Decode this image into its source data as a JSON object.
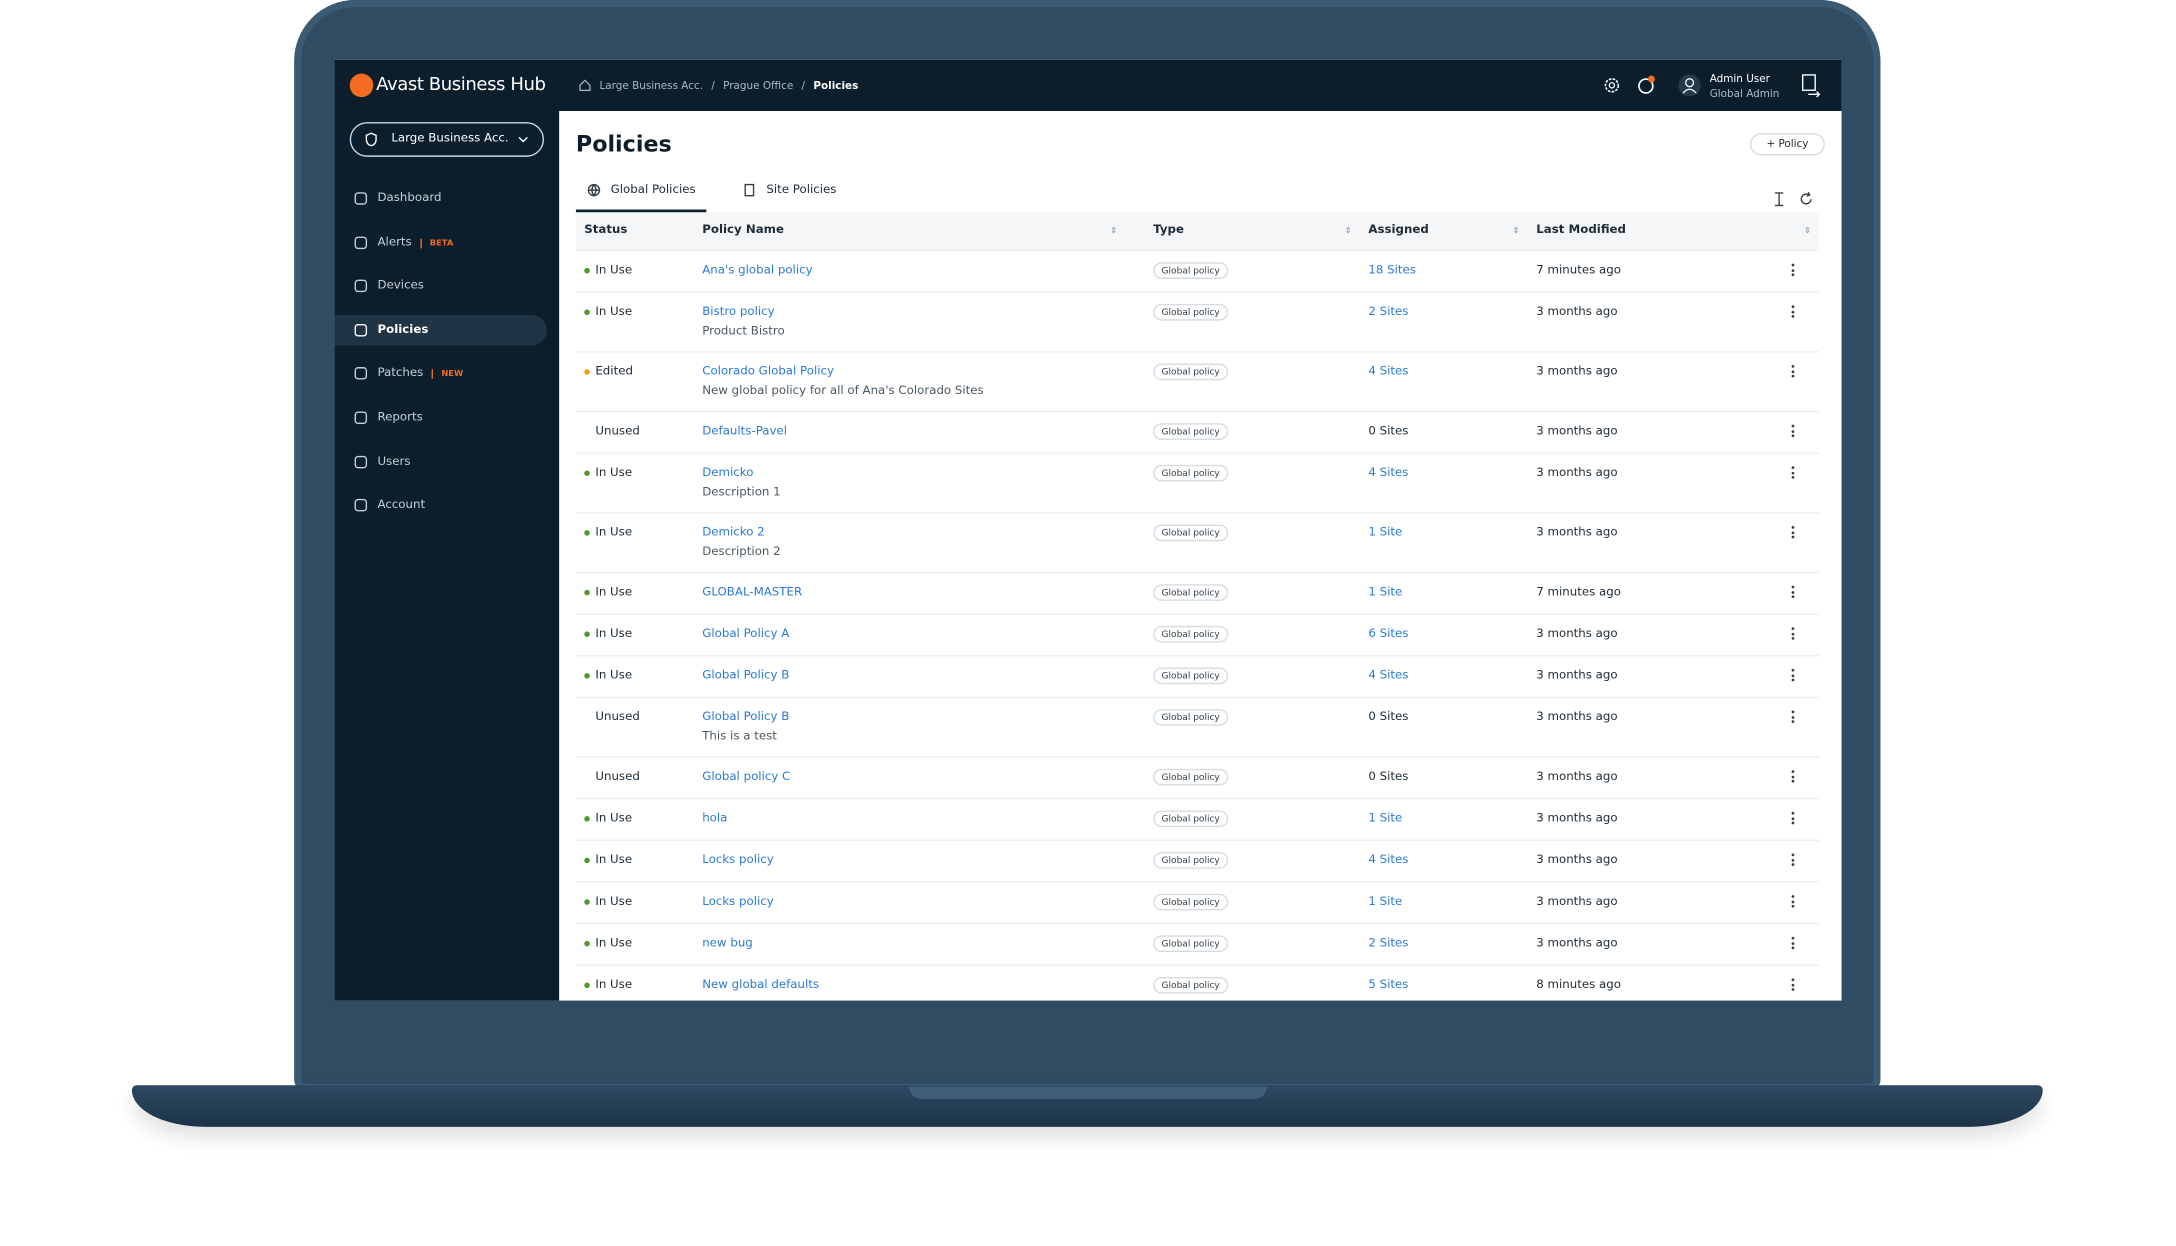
{
  "brand": "Avast Business Hub",
  "breadcrumbs": [
    "Large Business Acc.",
    "Prague Office",
    "Policies"
  ],
  "user": {
    "name": "Admin User",
    "role": "Global Admin"
  },
  "account_selector": "Large Business Acc.",
  "nav": [
    {
      "label": "Dashboard"
    },
    {
      "label": "Alerts",
      "badge": "BETA"
    },
    {
      "label": "Devices"
    },
    {
      "label": "Policies",
      "active": true
    },
    {
      "label": "Patches",
      "badge": "NEW"
    },
    {
      "label": "Reports"
    },
    {
      "label": "Users"
    },
    {
      "label": "Account"
    }
  ],
  "page_title": "Policies",
  "add_button": "Policy",
  "tabs": [
    "Global Policies",
    "Site Policies"
  ],
  "table": {
    "columns": [
      "Status",
      "Policy Name",
      "Type",
      "Assigned",
      "Last Modified"
    ],
    "rows": [
      {
        "status": "In Use",
        "dot": "#4f9a2b",
        "name": "Ana's global policy",
        "type": "Global policy",
        "assigned": "18 Sites",
        "assigned_link": true,
        "modified": "7 minutes ago"
      },
      {
        "status": "In Use",
        "dot": "#4f9a2b",
        "name": "Bistro policy",
        "description": "Product Bistro",
        "type": "Global policy",
        "assigned": "2 Sites",
        "assigned_link": true,
        "modified": "3 months ago"
      },
      {
        "status": "Edited",
        "dot": "#f39a1e",
        "name": "Colorado Global Policy",
        "description": "New global policy for all of Ana's Colorado Sites",
        "type": "Global policy",
        "assigned": "4 Sites",
        "assigned_link": true,
        "modified": "3 months ago"
      },
      {
        "status": "Unused",
        "dot": null,
        "name": "Defaults-Pavel",
        "type": "Global policy",
        "assigned": "0 Sites",
        "assigned_link": false,
        "modified": "3 months ago"
      },
      {
        "status": "In Use",
        "dot": "#4f9a2b",
        "name": "Demicko",
        "description": "Description 1",
        "type": "Global policy",
        "assigned": "4 Sites",
        "assigned_link": true,
        "modified": "3 months ago"
      },
      {
        "status": "In Use",
        "dot": "#4f9a2b",
        "name": "Demicko 2",
        "description": "Description 2",
        "type": "Global policy",
        "assigned": "1 Site",
        "assigned_link": true,
        "modified": "3 months ago"
      },
      {
        "status": "In Use",
        "dot": "#4f9a2b",
        "name": "GLOBAL-MASTER",
        "type": "Global policy",
        "assigned": "1 Site",
        "assigned_link": true,
        "modified": "7 minutes ago"
      },
      {
        "status": "In Use",
        "dot": "#4f9a2b",
        "name": "Global Policy A",
        "type": "Global policy",
        "assigned": "6 Sites",
        "assigned_link": true,
        "modified": "3 months ago"
      },
      {
        "status": "In Use",
        "dot": "#4f9a2b",
        "name": "Global Policy B",
        "type": "Global policy",
        "assigned": "4 Sites",
        "assigned_link": true,
        "modified": "3 months ago"
      },
      {
        "status": "Unused",
        "dot": null,
        "name": "Global Policy B",
        "description": "This is a test",
        "type": "Global policy",
        "assigned": "0 Sites",
        "assigned_link": false,
        "modified": "3 months ago"
      },
      {
        "status": "Unused",
        "dot": null,
        "name": "Global policy C",
        "type": "Global policy",
        "assigned": "0 Sites",
        "assigned_link": false,
        "modified": "3 months ago"
      },
      {
        "status": "In Use",
        "dot": "#4f9a2b",
        "name": "hola",
        "type": "Global policy",
        "assigned": "1 Site",
        "assigned_link": true,
        "modified": "3 months ago"
      },
      {
        "status": "In Use",
        "dot": "#4f9a2b",
        "name": "Locks policy",
        "type": "Global policy",
        "assigned": "4 Sites",
        "assigned_link": true,
        "modified": "3 months ago"
      },
      {
        "status": "In Use",
        "dot": "#4f9a2b",
        "name": "Locks policy",
        "type": "Global policy",
        "assigned": "1 Site",
        "assigned_link": true,
        "modified": "3 months ago"
      },
      {
        "status": "In Use",
        "dot": "#4f9a2b",
        "name": "new bug",
        "type": "Global policy",
        "assigned": "2 Sites",
        "assigned_link": true,
        "modified": "3 months ago"
      },
      {
        "status": "In Use",
        "dot": "#4f9a2b",
        "name": "New global defaults",
        "type": "Global policy",
        "assigned": "5 Sites",
        "assigned_link": true,
        "modified": "8 minutes ago"
      }
    ]
  }
}
